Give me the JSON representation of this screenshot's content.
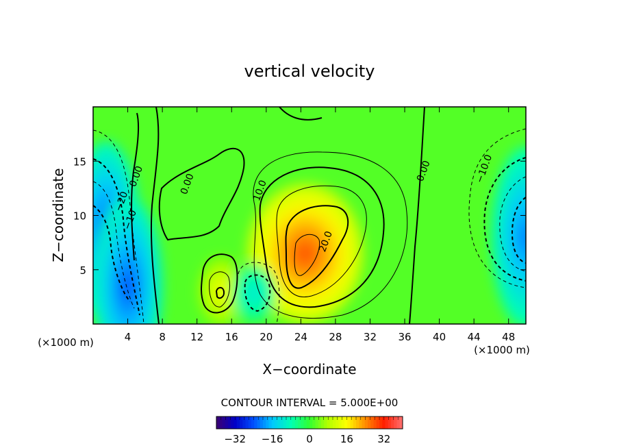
{
  "chart_data": {
    "type": "heatmap",
    "title": "vertical velocity",
    "xlabel": "X−coordinate",
    "ylabel": "Z−coordinate",
    "x_unit": "(×1000 m)",
    "xlim": [
      0,
      50
    ],
    "ylim": [
      0,
      20
    ],
    "x_ticks": [
      4,
      8,
      12,
      16,
      20,
      24,
      28,
      32,
      36,
      40,
      44,
      48
    ],
    "y_ticks": [
      5,
      10,
      15
    ],
    "contour_interval_text": "CONTOUR INTERVAL = 5.000E+00",
    "contour_interval": 5,
    "colorbar": {
      "range": [
        -40,
        40
      ],
      "ticks": [
        -32,
        -16,
        0,
        16,
        32
      ]
    },
    "contour_labels": [
      {
        "text": "0.00",
        "x": 5.3,
        "z": 13.5
      },
      {
        "text": "0.00",
        "x": 11.2,
        "z": 12.8
      },
      {
        "text": "0.00",
        "x": 38.5,
        "z": 14.0
      },
      {
        "text": "10.0",
        "x": 19.6,
        "z": 12.2
      },
      {
        "text": "20.0",
        "x": 27.2,
        "z": 7.5
      },
      {
        "text": "−10.0",
        "x": 45.5,
        "z": 14.2
      },
      {
        "text": "−20",
        "x": 3.6,
        "z": 11.2
      },
      {
        "text": "−10",
        "x": 4.6,
        "z": 9.5
      }
    ],
    "features": [
      {
        "kind": "max",
        "x": 24.5,
        "z": 6.5,
        "value": 30
      },
      {
        "kind": "max",
        "x": 14.8,
        "z": 3.0,
        "value": 15
      },
      {
        "kind": "min",
        "x": 1.5,
        "z": 8.5,
        "value": -25
      },
      {
        "kind": "min",
        "x": 4.0,
        "z": 3.5,
        "value": -25
      },
      {
        "kind": "min",
        "x": 18.6,
        "z": 2.8,
        "value": -12
      },
      {
        "kind": "min",
        "x": 50.0,
        "z": 8.0,
        "value": -22
      }
    ]
  },
  "colors": {
    "background": "#ffffff",
    "colormap": [
      "#3c0070",
      "#0000c8",
      "#0050ff",
      "#00c8ff",
      "#00ffb4",
      "#32ff32",
      "#b4ff00",
      "#ffff00",
      "#ff8c00",
      "#ff1e00",
      "#ff7070"
    ]
  }
}
